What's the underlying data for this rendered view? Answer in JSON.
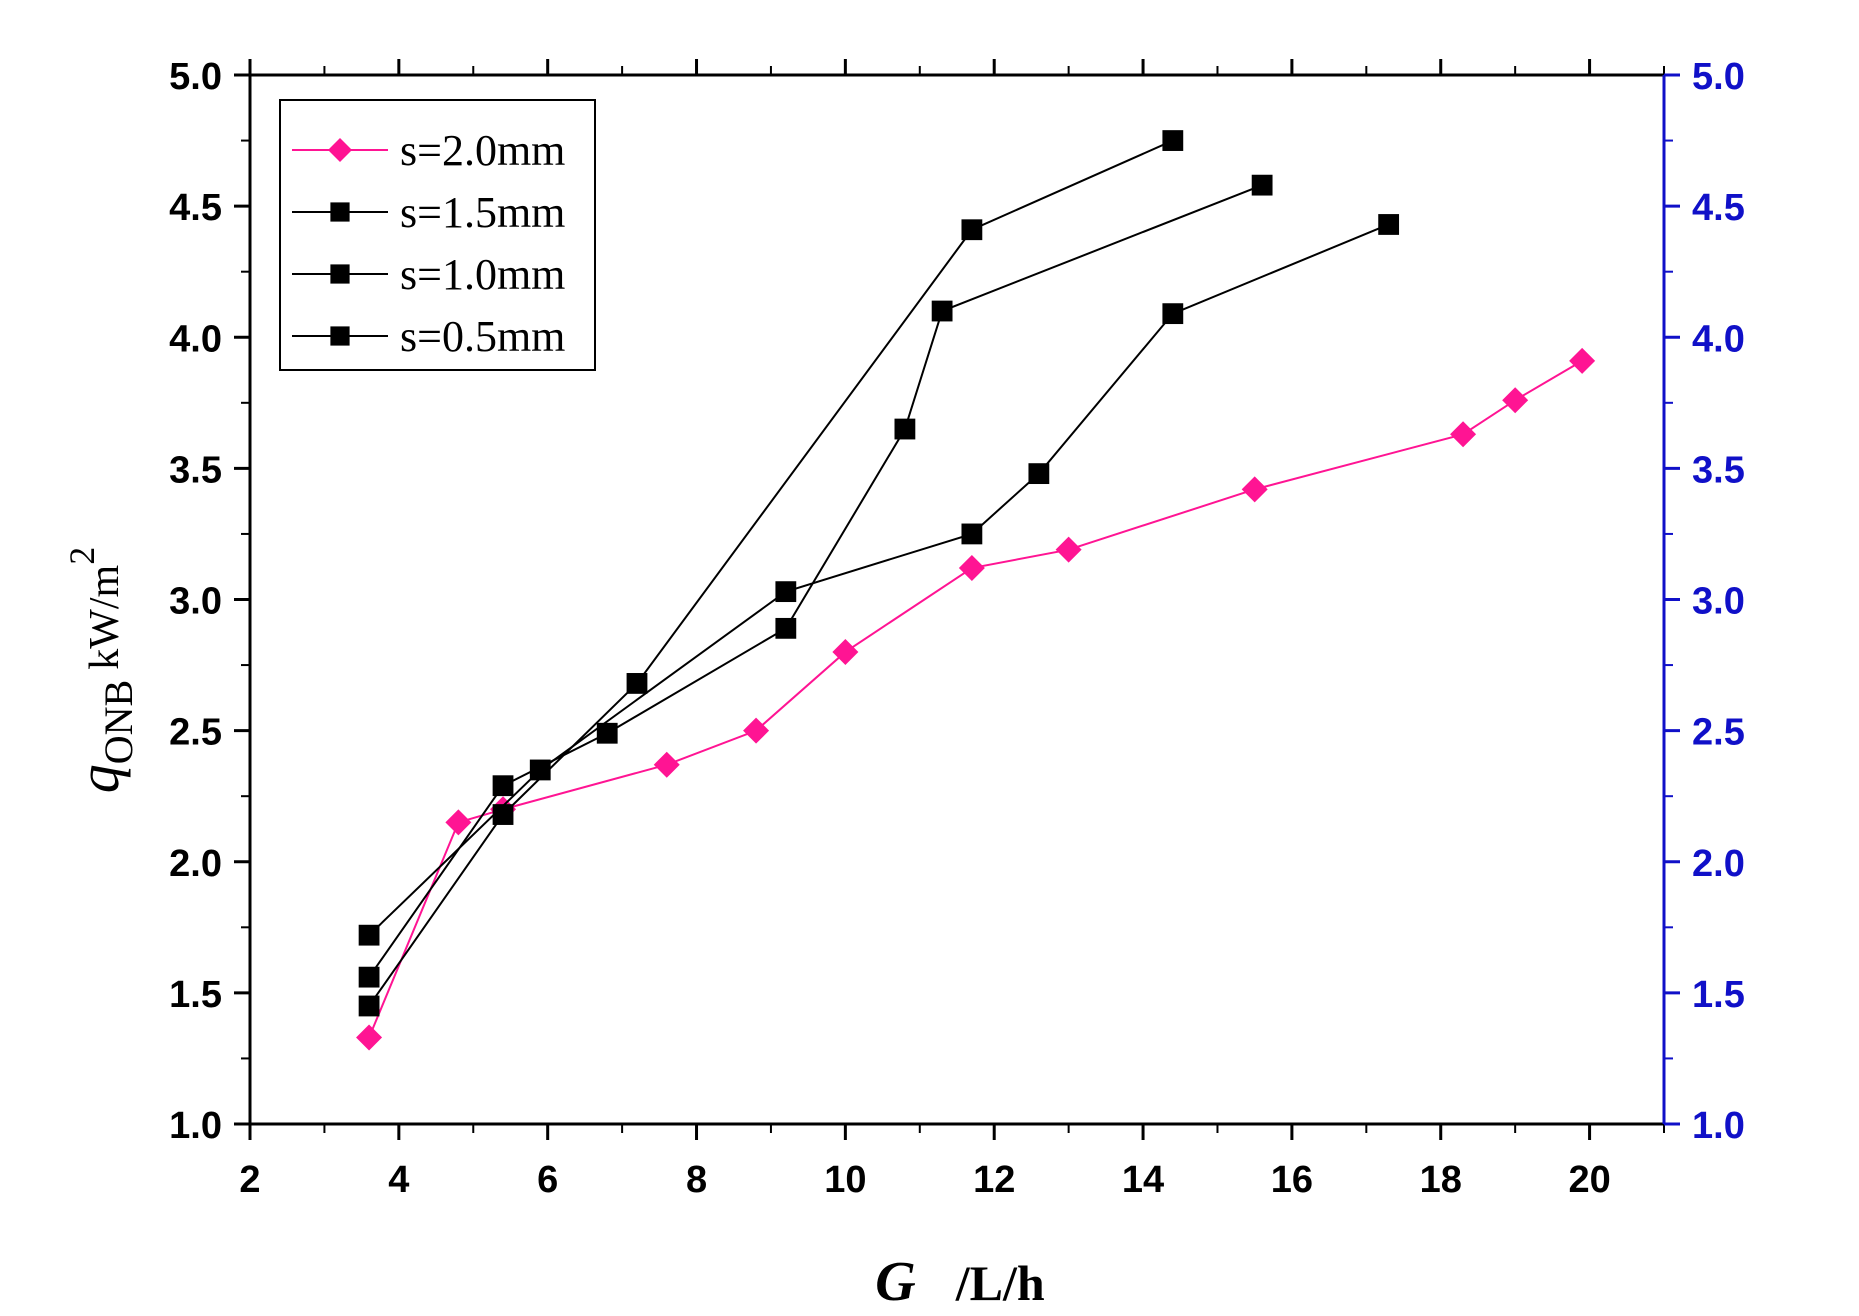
{
  "chart_data": {
    "type": "line",
    "xlabel": {
      "var": "G",
      "unit": "/L/h"
    },
    "ylabel": {
      "var": "q",
      "sub": "ONB",
      "unit": "kW/m",
      "sup": "2"
    },
    "xlim": [
      2,
      21
    ],
    "ylim": [
      1.0,
      5.0
    ],
    "x_ticks": [
      "2",
      "4",
      "6",
      "8",
      "10",
      "12",
      "14",
      "16",
      "18",
      "20"
    ],
    "y_ticks": [
      "1.0",
      "1.5",
      "2.0",
      "2.5",
      "3.0",
      "3.5",
      "4.0",
      "4.5",
      "5.0"
    ],
    "y2_ticks": [
      "1.0",
      "1.5",
      "2.0",
      "2.5",
      "3.0",
      "3.5",
      "4.0",
      "4.5",
      "5.0"
    ],
    "grid": false,
    "legend_position": "top-left",
    "colors": {
      "axis": "#000000",
      "right_axis": "#1010c8",
      "magenta": "#ff1493",
      "black": "#000000"
    },
    "series": [
      {
        "name": "s=2.0mm",
        "marker": "diamond",
        "color": "#ff1493",
        "x": [
          3.6,
          4.8,
          5.4,
          7.6,
          8.8,
          10.0,
          11.7,
          13.0,
          15.5,
          18.3,
          19.0,
          19.9
        ],
        "y": [
          1.33,
          2.15,
          2.2,
          2.37,
          2.5,
          2.8,
          3.12,
          3.19,
          3.42,
          3.63,
          3.76,
          3.91
        ]
      },
      {
        "name": "s=1.5mm",
        "marker": "square",
        "color": "#000000",
        "x": [
          3.6,
          5.4,
          7.2,
          11.7,
          14.4
        ],
        "y": [
          1.45,
          2.18,
          2.68,
          4.41,
          4.75
        ]
      },
      {
        "name": "s=1.0mm",
        "marker": "square",
        "color": "#000000",
        "x": [
          3.6,
          5.4,
          6.8,
          9.2,
          10.8,
          11.3,
          15.6
        ],
        "y": [
          1.56,
          2.29,
          2.49,
          2.89,
          3.65,
          4.1,
          4.58
        ]
      },
      {
        "name": "s=0.5mm",
        "marker": "square",
        "color": "#000000",
        "x": [
          3.6,
          5.9,
          9.2,
          11.7,
          12.6,
          14.4,
          17.3
        ],
        "y": [
          1.72,
          2.35,
          3.03,
          3.25,
          3.48,
          4.09,
          4.43
        ]
      }
    ]
  }
}
